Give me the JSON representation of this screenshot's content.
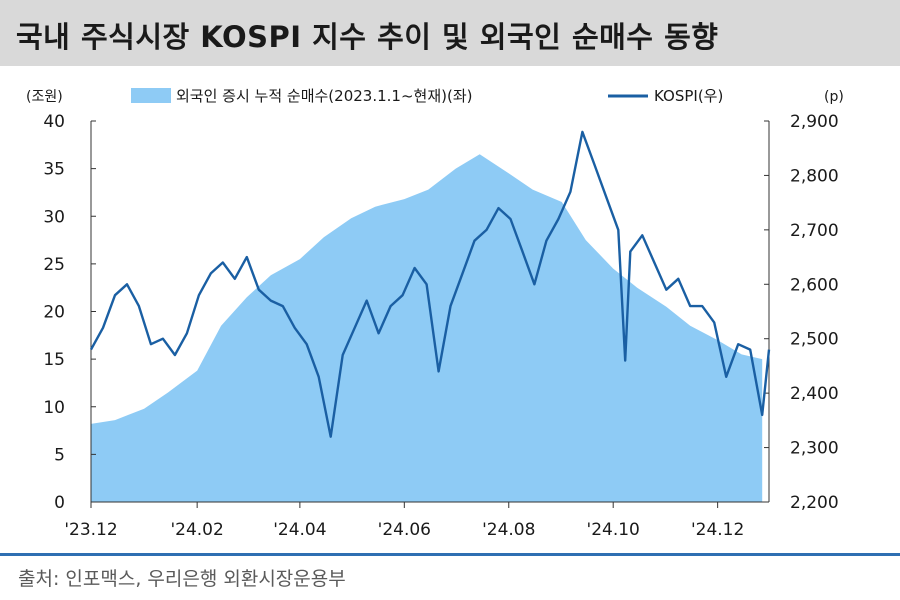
{
  "header": {
    "title": "국내 주식시장 KOSPI 지수 추이 및 외국인 순매수 동향"
  },
  "footer": {
    "source": "출처: 인포맥스, 우리은행 외환시장운용부"
  },
  "colors": {
    "area": "#8ecbf5",
    "line": "#1a5fa3",
    "source_rule": "#2f6fb2",
    "title_bg": "#d9d9d9"
  },
  "chart_data": {
    "type": "area+line",
    "left_unit": "(조원)",
    "right_unit": "(p)",
    "left_ylim": [
      0,
      40
    ],
    "right_ylim": [
      2200,
      2900
    ],
    "left_ticks": [
      "0",
      "5",
      "10",
      "15",
      "20",
      "25",
      "30",
      "35",
      "40"
    ],
    "right_ticks": [
      "2,200",
      "2,300",
      "2,400",
      "2,500",
      "2,600",
      "2,700",
      "2,800",
      "2,900"
    ],
    "x_ticks": [
      {
        "label": "'23.12",
        "date": "2023-12-01"
      },
      {
        "label": "'24.02",
        "date": "2024-02-01"
      },
      {
        "label": "'24.04",
        "date": "2024-04-01"
      },
      {
        "label": "'24.06",
        "date": "2024-06-01"
      },
      {
        "label": "'24.08",
        "date": "2024-08-01"
      },
      {
        "label": "'24.10",
        "date": "2024-10-01"
      },
      {
        "label": "'24.12",
        "date": "2024-12-01"
      }
    ],
    "grid": false,
    "legend_position": "top",
    "series": [
      {
        "name": "외국인 증시 누적 순매수(2023.1.1~현재)(좌)",
        "kind": "area",
        "axis": "left",
        "points": [
          [
            "2023-12-01",
            8.2
          ],
          [
            "2023-12-15",
            8.6
          ],
          [
            "2024-01-01",
            9.8
          ],
          [
            "2024-01-15",
            11.5
          ],
          [
            "2024-02-01",
            13.8
          ],
          [
            "2024-02-15",
            18.5
          ],
          [
            "2024-03-01",
            21.5
          ],
          [
            "2024-03-15",
            23.8
          ],
          [
            "2024-04-01",
            25.5
          ],
          [
            "2024-04-15",
            27.8
          ],
          [
            "2024-05-01",
            29.8
          ],
          [
            "2024-05-15",
            31.0
          ],
          [
            "2024-06-01",
            31.8
          ],
          [
            "2024-06-15",
            32.8
          ],
          [
            "2024-07-01",
            35.0
          ],
          [
            "2024-07-15",
            36.5
          ],
          [
            "2024-08-01",
            34.5
          ],
          [
            "2024-08-15",
            32.8
          ],
          [
            "2024-09-01",
            31.5
          ],
          [
            "2024-09-15",
            27.5
          ],
          [
            "2024-10-01",
            24.5
          ],
          [
            "2024-10-15",
            22.5
          ],
          [
            "2024-11-01",
            20.5
          ],
          [
            "2024-11-15",
            18.5
          ],
          [
            "2024-12-01",
            17.0
          ],
          [
            "2024-12-15",
            15.5
          ],
          [
            "2024-12-27",
            15.0
          ]
        ]
      },
      {
        "name": "KOSPI(우)",
        "kind": "line",
        "axis": "right",
        "points": [
          [
            "2023-12-01",
            2480
          ],
          [
            "2023-12-08",
            2520
          ],
          [
            "2023-12-15",
            2580
          ],
          [
            "2023-12-22",
            2600
          ],
          [
            "2023-12-29",
            2560
          ],
          [
            "2024-01-05",
            2490
          ],
          [
            "2024-01-12",
            2500
          ],
          [
            "2024-01-19",
            2470
          ],
          [
            "2024-01-26",
            2510
          ],
          [
            "2024-02-02",
            2580
          ],
          [
            "2024-02-09",
            2620
          ],
          [
            "2024-02-16",
            2640
          ],
          [
            "2024-02-23",
            2610
          ],
          [
            "2024-03-01",
            2650
          ],
          [
            "2024-03-08",
            2590
          ],
          [
            "2024-03-15",
            2570
          ],
          [
            "2024-03-22",
            2560
          ],
          [
            "2024-03-29",
            2520
          ],
          [
            "2024-04-05",
            2490
          ],
          [
            "2024-04-12",
            2430
          ],
          [
            "2024-04-19",
            2320
          ],
          [
            "2024-04-26",
            2470
          ],
          [
            "2024-05-03",
            2520
          ],
          [
            "2024-05-10",
            2570
          ],
          [
            "2024-05-17",
            2510
          ],
          [
            "2024-05-24",
            2560
          ],
          [
            "2024-05-31",
            2580
          ],
          [
            "2024-06-07",
            2630
          ],
          [
            "2024-06-14",
            2600
          ],
          [
            "2024-06-21",
            2440
          ],
          [
            "2024-06-28",
            2560
          ],
          [
            "2024-07-05",
            2620
          ],
          [
            "2024-07-12",
            2680
          ],
          [
            "2024-07-19",
            2700
          ],
          [
            "2024-07-26",
            2740
          ],
          [
            "2024-08-02",
            2720
          ],
          [
            "2024-08-09",
            2660
          ],
          [
            "2024-08-16",
            2600
          ],
          [
            "2024-08-23",
            2680
          ],
          [
            "2024-08-30",
            2720
          ],
          [
            "2024-09-06",
            2770
          ],
          [
            "2024-09-13",
            2880
          ],
          [
            "2024-09-20",
            2820
          ],
          [
            "2024-09-27",
            2760
          ],
          [
            "2024-10-04",
            2700
          ],
          [
            "2024-10-08",
            2460
          ],
          [
            "2024-10-11",
            2660
          ],
          [
            "2024-10-18",
            2690
          ],
          [
            "2024-10-25",
            2640
          ],
          [
            "2024-11-01",
            2590
          ],
          [
            "2024-11-08",
            2610
          ],
          [
            "2024-11-15",
            2560
          ],
          [
            "2024-11-22",
            2560
          ],
          [
            "2024-11-29",
            2530
          ],
          [
            "2024-12-06",
            2430
          ],
          [
            "2024-12-13",
            2490
          ],
          [
            "2024-12-20",
            2480
          ],
          [
            "2024-12-27",
            2360
          ],
          [
            "2024-12-31",
            2480
          ]
        ]
      }
    ]
  }
}
